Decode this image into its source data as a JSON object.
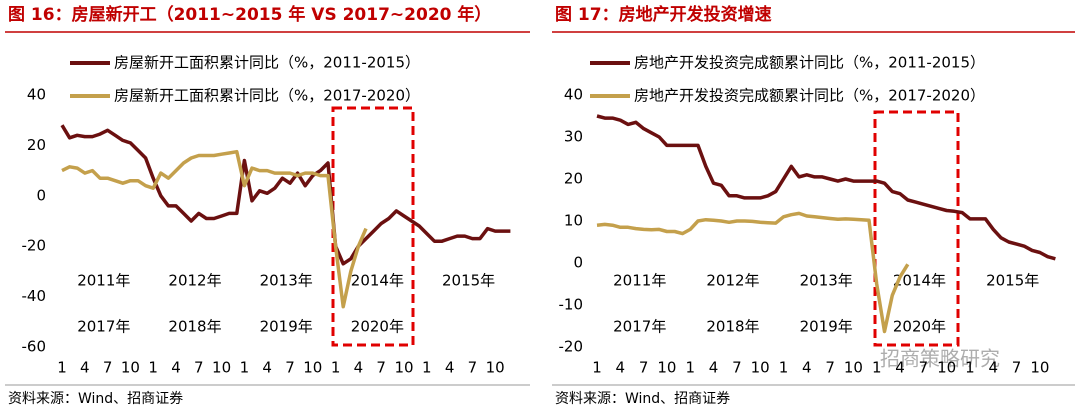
{
  "chart_data": [
    {
      "type": "line",
      "title": "图 16：房屋新开工（2011~2015 年 VS 2017~2020 年）",
      "source": "资料来源：Wind、招商证券",
      "legend": "top-left",
      "categories": [
        "1",
        null,
        null,
        "4",
        null,
        null,
        "7",
        null,
        null,
        "10",
        null,
        null,
        "1",
        null,
        null,
        "4",
        null,
        null,
        "7",
        null,
        null,
        "10",
        null,
        null,
        "1",
        null,
        null,
        "4",
        null,
        null,
        "7",
        null,
        null,
        "10",
        null,
        null,
        "1",
        null,
        null,
        "4",
        null,
        null,
        "7",
        null,
        null,
        "10",
        null,
        null,
        "1",
        null,
        null,
        "4",
        null,
        null,
        "7",
        null,
        null,
        "10",
        null,
        null
      ],
      "year_labels_row1": [
        "2011年",
        "2012年",
        "2013年",
        "2014年",
        "2015年"
      ],
      "year_labels_row2": [
        "2017年",
        "2018年",
        "2019年",
        "2020年"
      ],
      "ylim": [
        -60,
        40
      ],
      "yticks": [
        -60,
        -40,
        -20,
        0,
        20,
        40
      ],
      "series": [
        {
          "name": "房屋新开工面积累计同比（%，2011-2015）",
          "color": "#6b1010",
          "values": [
            28,
            23,
            24,
            23.5,
            23.5,
            24.5,
            26,
            24,
            22,
            21,
            18,
            15,
            7,
            0,
            -4,
            -4,
            -7,
            -10,
            -7,
            -9,
            -9,
            -8,
            -7,
            -7,
            14,
            -2,
            2,
            1,
            3,
            7,
            5,
            9,
            4,
            8,
            10,
            13,
            -20,
            -27,
            -25,
            -20,
            -17,
            -14,
            -11,
            -9,
            -6,
            -8,
            -10,
            -12,
            -15,
            -18,
            -18,
            -17,
            -16,
            -16,
            -17,
            -17,
            -13,
            -14,
            -14,
            -14
          ]
        },
        {
          "name": "房屋新开工面积累计同比（%，2017-2020）",
          "color": "#c4a04c",
          "values": [
            10,
            11.5,
            11,
            9,
            10,
            7,
            7,
            6,
            5,
            6,
            6,
            4,
            3,
            9,
            7,
            10,
            13,
            15,
            16,
            16,
            16,
            16.5,
            17,
            17.5,
            4,
            11,
            10,
            10,
            9,
            9,
            9,
            8,
            9,
            9,
            8,
            8,
            -20,
            -44,
            -30,
            -20,
            -13,
            null,
            null,
            null,
            null,
            null,
            null,
            null,
            null,
            null,
            null,
            null,
            null,
            null,
            null,
            null,
            null,
            null,
            null,
            null
          ]
        }
      ]
    },
    {
      "type": "line",
      "title": "图 17：房地产开发投资增速",
      "source": "资料来源：Wind、招商证券",
      "watermark": "招商策略研究",
      "legend": "top-left",
      "categories": [
        "1",
        null,
        null,
        "4",
        null,
        null,
        "7",
        null,
        null,
        "10",
        null,
        null,
        "1",
        null,
        null,
        "4",
        null,
        null,
        "7",
        null,
        null,
        "10",
        null,
        null,
        "1",
        null,
        null,
        "4",
        null,
        null,
        "7",
        null,
        null,
        "10",
        null,
        null,
        "1",
        null,
        null,
        "4",
        null,
        null,
        "7",
        null,
        null,
        "10",
        null,
        null,
        "1",
        null,
        null,
        "4",
        null,
        null,
        "7",
        null,
        null,
        "10",
        null,
        null
      ],
      "year_labels_row1": [
        "2011年",
        "2012年",
        "2013年",
        "2014年",
        "2015年"
      ],
      "year_labels_row2": [
        "2017年",
        "2018年",
        "2019年",
        "2020年"
      ],
      "ylim": [
        -20,
        40
      ],
      "yticks": [
        -20,
        -10,
        0,
        10,
        20,
        30,
        40
      ],
      "series": [
        {
          "name": "房地产开发投资完成额累计同比（%，2011-2015）",
          "color": "#6b1010",
          "values": [
            35,
            34.5,
            34.5,
            34,
            33,
            33.5,
            32,
            31,
            30,
            28,
            28,
            28,
            28,
            28,
            23,
            19,
            18.5,
            16,
            16,
            15.5,
            15.5,
            15.5,
            16,
            17,
            20,
            23,
            20.5,
            21,
            20.5,
            20.5,
            20,
            19.5,
            20,
            19.5,
            19.5,
            19.5,
            19.5,
            19,
            17,
            16.5,
            15,
            14.5,
            14,
            13.5,
            13,
            12.5,
            12.3,
            12,
            10.5,
            10.5,
            10.5,
            8,
            6,
            5,
            4.5,
            4,
            3,
            2.5,
            1.5,
            1
          ]
        },
        {
          "name": "房地产开发投资完成额累计同比（%，2017-2020）",
          "color": "#c4a04c",
          "values": [
            9,
            9.2,
            9,
            8.5,
            8.5,
            8.2,
            8,
            7.9,
            8,
            7.5,
            7.5,
            7,
            8,
            10,
            10.3,
            10.2,
            10,
            9.7,
            10,
            10,
            9.9,
            9.7,
            9.6,
            9.5,
            11,
            11.5,
            11.8,
            11.2,
            11,
            10.8,
            10.6,
            10.4,
            10.5,
            10.4,
            10.3,
            10.2,
            -5,
            -16.3,
            -7.7,
            -3.3,
            -0.3,
            null,
            null,
            null,
            null,
            null,
            null,
            null,
            null,
            null,
            null,
            null,
            null,
            null,
            null,
            null,
            null,
            null,
            null,
            null
          ]
        }
      ]
    }
  ]
}
